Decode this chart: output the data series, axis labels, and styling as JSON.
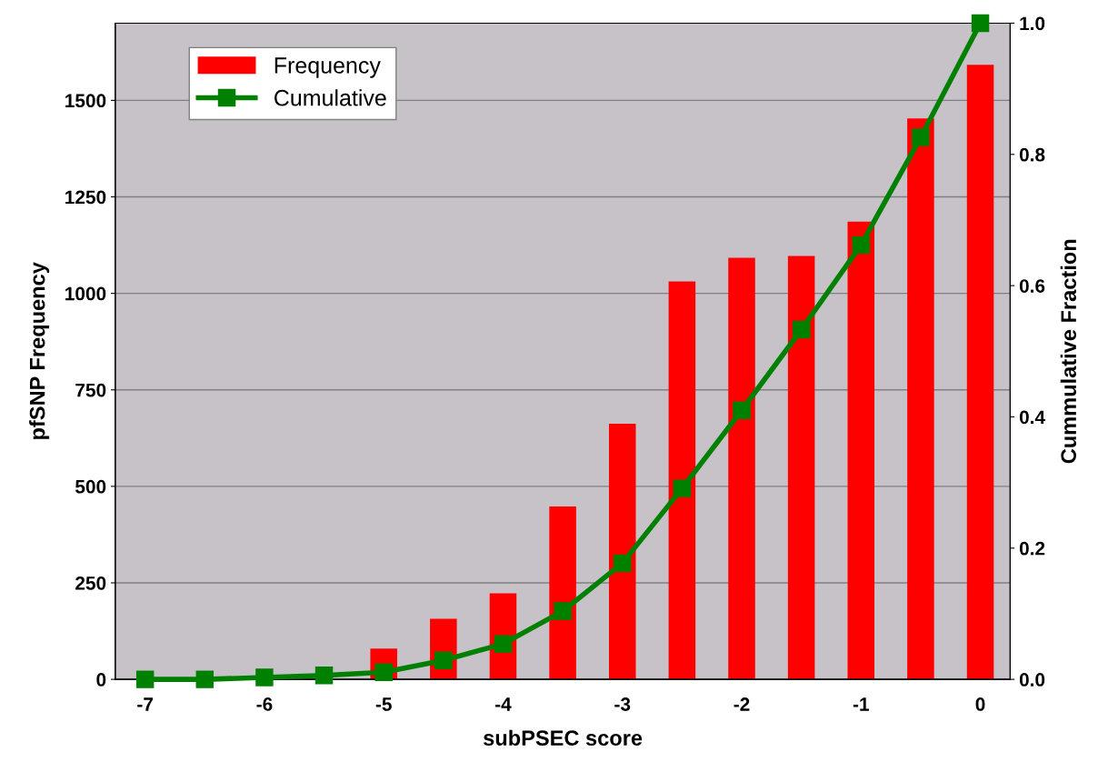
{
  "chart_data": {
    "type": "bar",
    "xlabel": "subPSEC score",
    "ylabel": "pfSNP Frequency",
    "y2label": "Cummulative Fraction",
    "categories": [
      "-7",
      null,
      "-6",
      null,
      "-5",
      null,
      "-4",
      null,
      "-3",
      null,
      "-2",
      null,
      "-1",
      null,
      "0"
    ],
    "series": [
      {
        "name": "Frequency",
        "color": "#ff0000",
        "values": [
          null,
          null,
          null,
          null,
          80,
          157,
          223,
          448,
          662,
          1031,
          1092,
          1097,
          1186,
          1453,
          1592
        ]
      },
      {
        "name": "Cumulative",
        "type": "line",
        "axis": "y2",
        "color": "#008000",
        "marker": "square",
        "values": [
          0.0,
          0.0,
          0.003,
          0.006,
          0.011,
          0.029,
          0.054,
          0.104,
          0.177,
          0.291,
          0.41,
          0.533,
          0.662,
          0.826,
          1.0
        ]
      }
    ],
    "ylim": [
      0,
      1700
    ],
    "yticks": [
      0,
      250,
      500,
      750,
      1000,
      1250,
      1500
    ],
    "y2lim": [
      0,
      1.0
    ],
    "y2ticks": [
      {
        "value": 0,
        "label": "0.0"
      },
      {
        "value": 0.2,
        "label": "0.2"
      },
      {
        "value": 0.4,
        "label": "0.4"
      },
      {
        "value": 0.6,
        "label": "0.6"
      },
      {
        "value": 0.8,
        "label": "0.8"
      },
      {
        "value": 1.0,
        "label": "1.0"
      }
    ],
    "grid": "y",
    "legend": "top left"
  }
}
